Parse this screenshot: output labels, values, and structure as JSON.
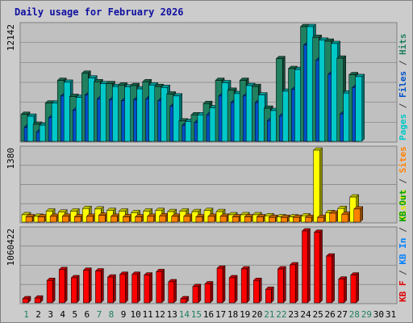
{
  "chart_data": [
    {
      "type": "bar",
      "title": "Daily usage for February 2026",
      "categories": [
        "1",
        "2",
        "3",
        "4",
        "5",
        "6",
        "7",
        "8",
        "9",
        "10",
        "11",
        "12",
        "13",
        "14",
        "15",
        "16",
        "17",
        "18",
        "19",
        "20",
        "21",
        "22",
        "23",
        "24",
        "25",
        "26",
        "27",
        "28",
        "29",
        "30",
        "31"
      ],
      "weekend_days": [
        "1",
        "7",
        "8",
        "14",
        "15",
        "21",
        "22",
        "28",
        "29"
      ],
      "max_label": "12142",
      "ymax": 12142,
      "legend_right": [
        {
          "text": "Pages",
          "color": "#00c8c8"
        },
        {
          "text": " / ",
          "color": "#404040"
        },
        {
          "text": "Files",
          "color": "#0050c8"
        },
        {
          "text": " / ",
          "color": "#404040"
        },
        {
          "text": "Hits",
          "color": "#208060"
        }
      ],
      "series": [
        {
          "name": "Hits",
          "color": "#208060",
          "values": [
            2850,
            1800,
            4050,
            6450,
            4750,
            7200,
            6300,
            6100,
            5950,
            5900,
            6300,
            5800,
            5000,
            2150,
            2800,
            4000,
            6450,
            5400,
            6450,
            5800,
            3500,
            8750,
            7700,
            12142,
            11000,
            10600,
            8800,
            7050,
            0,
            0,
            0
          ]
        },
        {
          "name": "Files",
          "color": "#0050c8",
          "values": [
            1500,
            1000,
            2500,
            4800,
            3300,
            4900,
            4500,
            4400,
            4300,
            4400,
            4500,
            4300,
            3700,
            1700,
            2000,
            2800,
            4800,
            4100,
            4800,
            4100,
            2200,
            2700,
            5500,
            10200,
            8600,
            7100,
            2900,
            5700,
            0,
            0,
            0
          ]
        },
        {
          "name": "Pages",
          "color": "#00c8c8",
          "values": [
            2650,
            1700,
            4050,
            6250,
            4650,
            6700,
            6100,
            5800,
            5750,
            5550,
            5950,
            5700,
            4800,
            2100,
            2800,
            3550,
            6200,
            5050,
            5900,
            4900,
            3250,
            5300,
            7600,
            12142,
            10700,
            10350,
            5100,
            6850,
            0,
            0,
            0
          ]
        }
      ]
    },
    {
      "type": "bar",
      "max_label": "1380",
      "ymax": 1380,
      "legend_right": [
        {
          "text": "Visits",
          "color": "#e8e800"
        },
        {
          "text": " / ",
          "color": "#404040"
        },
        {
          "text": "Sites",
          "color": "#ff8000"
        }
      ],
      "series": [
        {
          "name": "Visits",
          "color": "#ffff00",
          "values": [
            140,
            110,
            210,
            190,
            210,
            260,
            250,
            220,
            210,
            180,
            210,
            220,
            200,
            210,
            200,
            220,
            200,
            140,
            140,
            140,
            120,
            100,
            100,
            120,
            1380,
            180,
            260,
            480,
            0,
            0,
            0
          ]
        },
        {
          "name": "Sites",
          "color": "#ff8000",
          "values": [
            100,
            100,
            110,
            110,
            100,
            110,
            130,
            110,
            100,
            100,
            110,
            120,
            110,
            110,
            100,
            110,
            110,
            100,
            100,
            100,
            90,
            90,
            90,
            90,
            90,
            170,
            150,
            250,
            0,
            0,
            0
          ]
        }
      ]
    },
    {
      "type": "bar",
      "max_label": "1060422",
      "ymax": 1060422,
      "legend_right": [
        {
          "text": "KB F",
          "color": "#e00000"
        },
        {
          "text": " / ",
          "color": "#404040"
        },
        {
          "text": "KB In",
          "color": "#0080ff"
        },
        {
          "text": " / ",
          "color": "#404040"
        },
        {
          "text": "KB Out",
          "color": "#00a000"
        }
      ],
      "series": [
        {
          "name": "KB F",
          "color": "#ff0000",
          "values": [
            60000,
            70000,
            330000,
            490000,
            370000,
            480000,
            470000,
            380000,
            420000,
            420000,
            410000,
            460000,
            310000,
            60000,
            240000,
            280000,
            510000,
            370000,
            500000,
            330000,
            200000,
            500000,
            560000,
            1060422,
            1040000,
            690000,
            350000,
            410000,
            0,
            0,
            0
          ]
        }
      ]
    }
  ]
}
